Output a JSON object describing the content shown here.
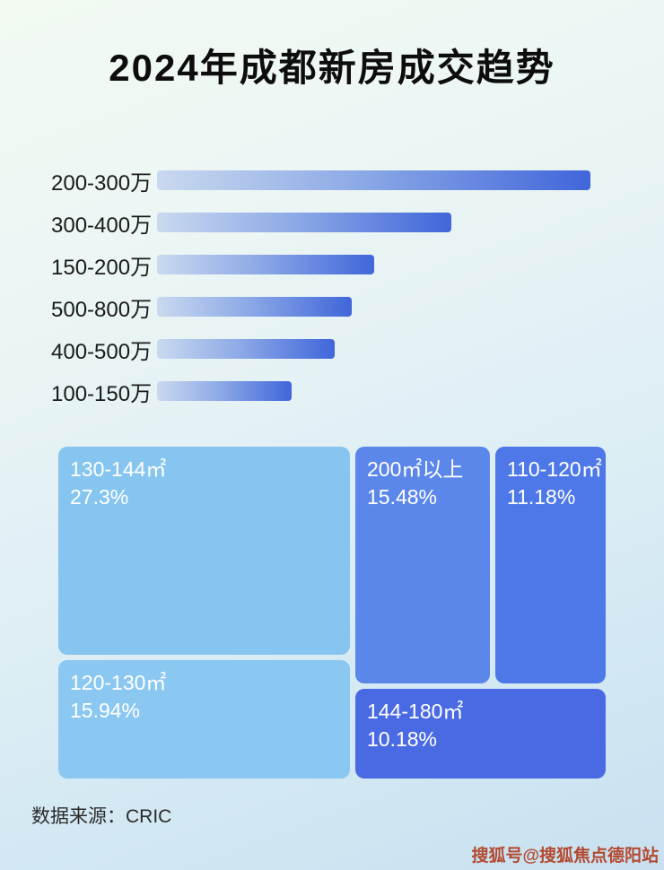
{
  "page": {
    "title": "2024年成都新房成交趋势",
    "source": "数据来源：CRIC",
    "watermark": "搜狐号@搜狐焦点德阳站"
  },
  "colors": {
    "bar_gradient_start": "#c9d9ef",
    "bar_gradient_end": "#4066da",
    "background_top": "#f2faf1",
    "background_bottom": "#c8e0f0"
  },
  "chart_data": [
    {
      "type": "bar",
      "orientation": "horizontal",
      "title": "2024年成都新房成交趋势",
      "categories": [
        "200-300万",
        "300-400万",
        "150-200万",
        "500-800万",
        "400-500万",
        "100-150万"
      ],
      "values": [
        100,
        68,
        50,
        45,
        41,
        31
      ],
      "value_note": "relative bar length, % of longest bar; no numeric axis shown in image",
      "xlabel": "",
      "ylabel": "",
      "grid": false,
      "legend": false
    },
    {
      "type": "treemap",
      "title": "",
      "items": [
        {
          "label": "130-144㎡",
          "value": 27.3,
          "display": "27.3%",
          "color": "#86c5f0"
        },
        {
          "label": "200㎡以上",
          "value": 15.48,
          "display": "15.48%",
          "color": "#5b86ea"
        },
        {
          "label": "110-120㎡",
          "value": 11.18,
          "display": "11.18%",
          "color": "#4e78e8"
        },
        {
          "label": "120-130㎡",
          "value": 15.94,
          "display": "15.94%",
          "color": "#8ac7f1"
        },
        {
          "label": "144-180㎡",
          "value": 10.18,
          "display": "10.18%",
          "color": "#4a6ae4"
        }
      ]
    }
  ]
}
